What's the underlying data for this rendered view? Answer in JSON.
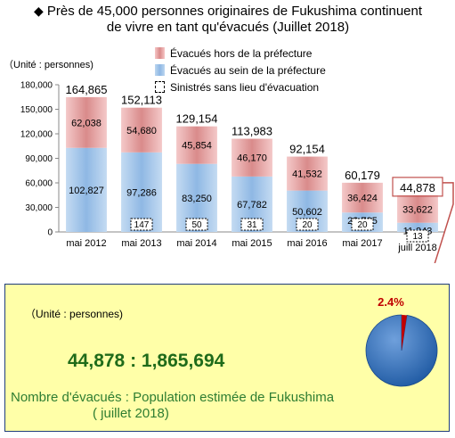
{
  "title_line1": "Près de 45,000 personnes originaires de Fukushima continuent",
  "title_line2": "de vivre en tant qu'évacués (Juillet 2018)",
  "title_bullet": "◆",
  "unit_label": "（Unité : personnes)",
  "legend": {
    "outside": "Évacués hors de la préfecture",
    "inside": "Évacués au sein de la préfecture",
    "no_home": "Sinistrés sans lieu d'évacuation"
  },
  "colors": {
    "outside": "#e3a0a0",
    "inside": "#a8c9ec",
    "panel_border": "#1f3d7a",
    "pie_main": "#2f6db5",
    "pie_slice": "#c00000",
    "callout": "#c0504d"
  },
  "chart_data": {
    "type": "bar",
    "stacked": true,
    "categories": [
      "mai 2012",
      "mai 2013",
      "mai 2014",
      "mai 2015",
      "mai 2016",
      "mai 2017",
      "juill 2018"
    ],
    "series": [
      {
        "name": "Évacués au sein de la préfecture",
        "values": [
          102827,
          97286,
          83250,
          67782,
          50602,
          23735,
          11243
        ]
      },
      {
        "name": "Évacués hors de la préfecture",
        "values": [
          62038,
          54680,
          45854,
          46170,
          41532,
          36424,
          33622
        ]
      },
      {
        "name": "Sinistrés sans lieu d'évacuation",
        "values": [
          null,
          147,
          50,
          31,
          20,
          20,
          13
        ]
      }
    ],
    "totals": [
      164865,
      152113,
      129154,
      113983,
      92154,
      60179,
      44878
    ],
    "y_ticks": [
      0,
      30000,
      60000,
      90000,
      120000,
      150000,
      180000
    ],
    "ylim": [
      0,
      180000
    ],
    "grid": false,
    "legend_position": "top"
  },
  "bottom": {
    "unit": "（Unité : personnes)",
    "ratio": "44,878 : 1,865,694",
    "caption_line1": "Nombre d'évacués : Population estimée de Fukushima",
    "caption_line2": "( juillet 2018)",
    "pie_percent_label": "2.4%",
    "pie_percent": 2.4
  }
}
